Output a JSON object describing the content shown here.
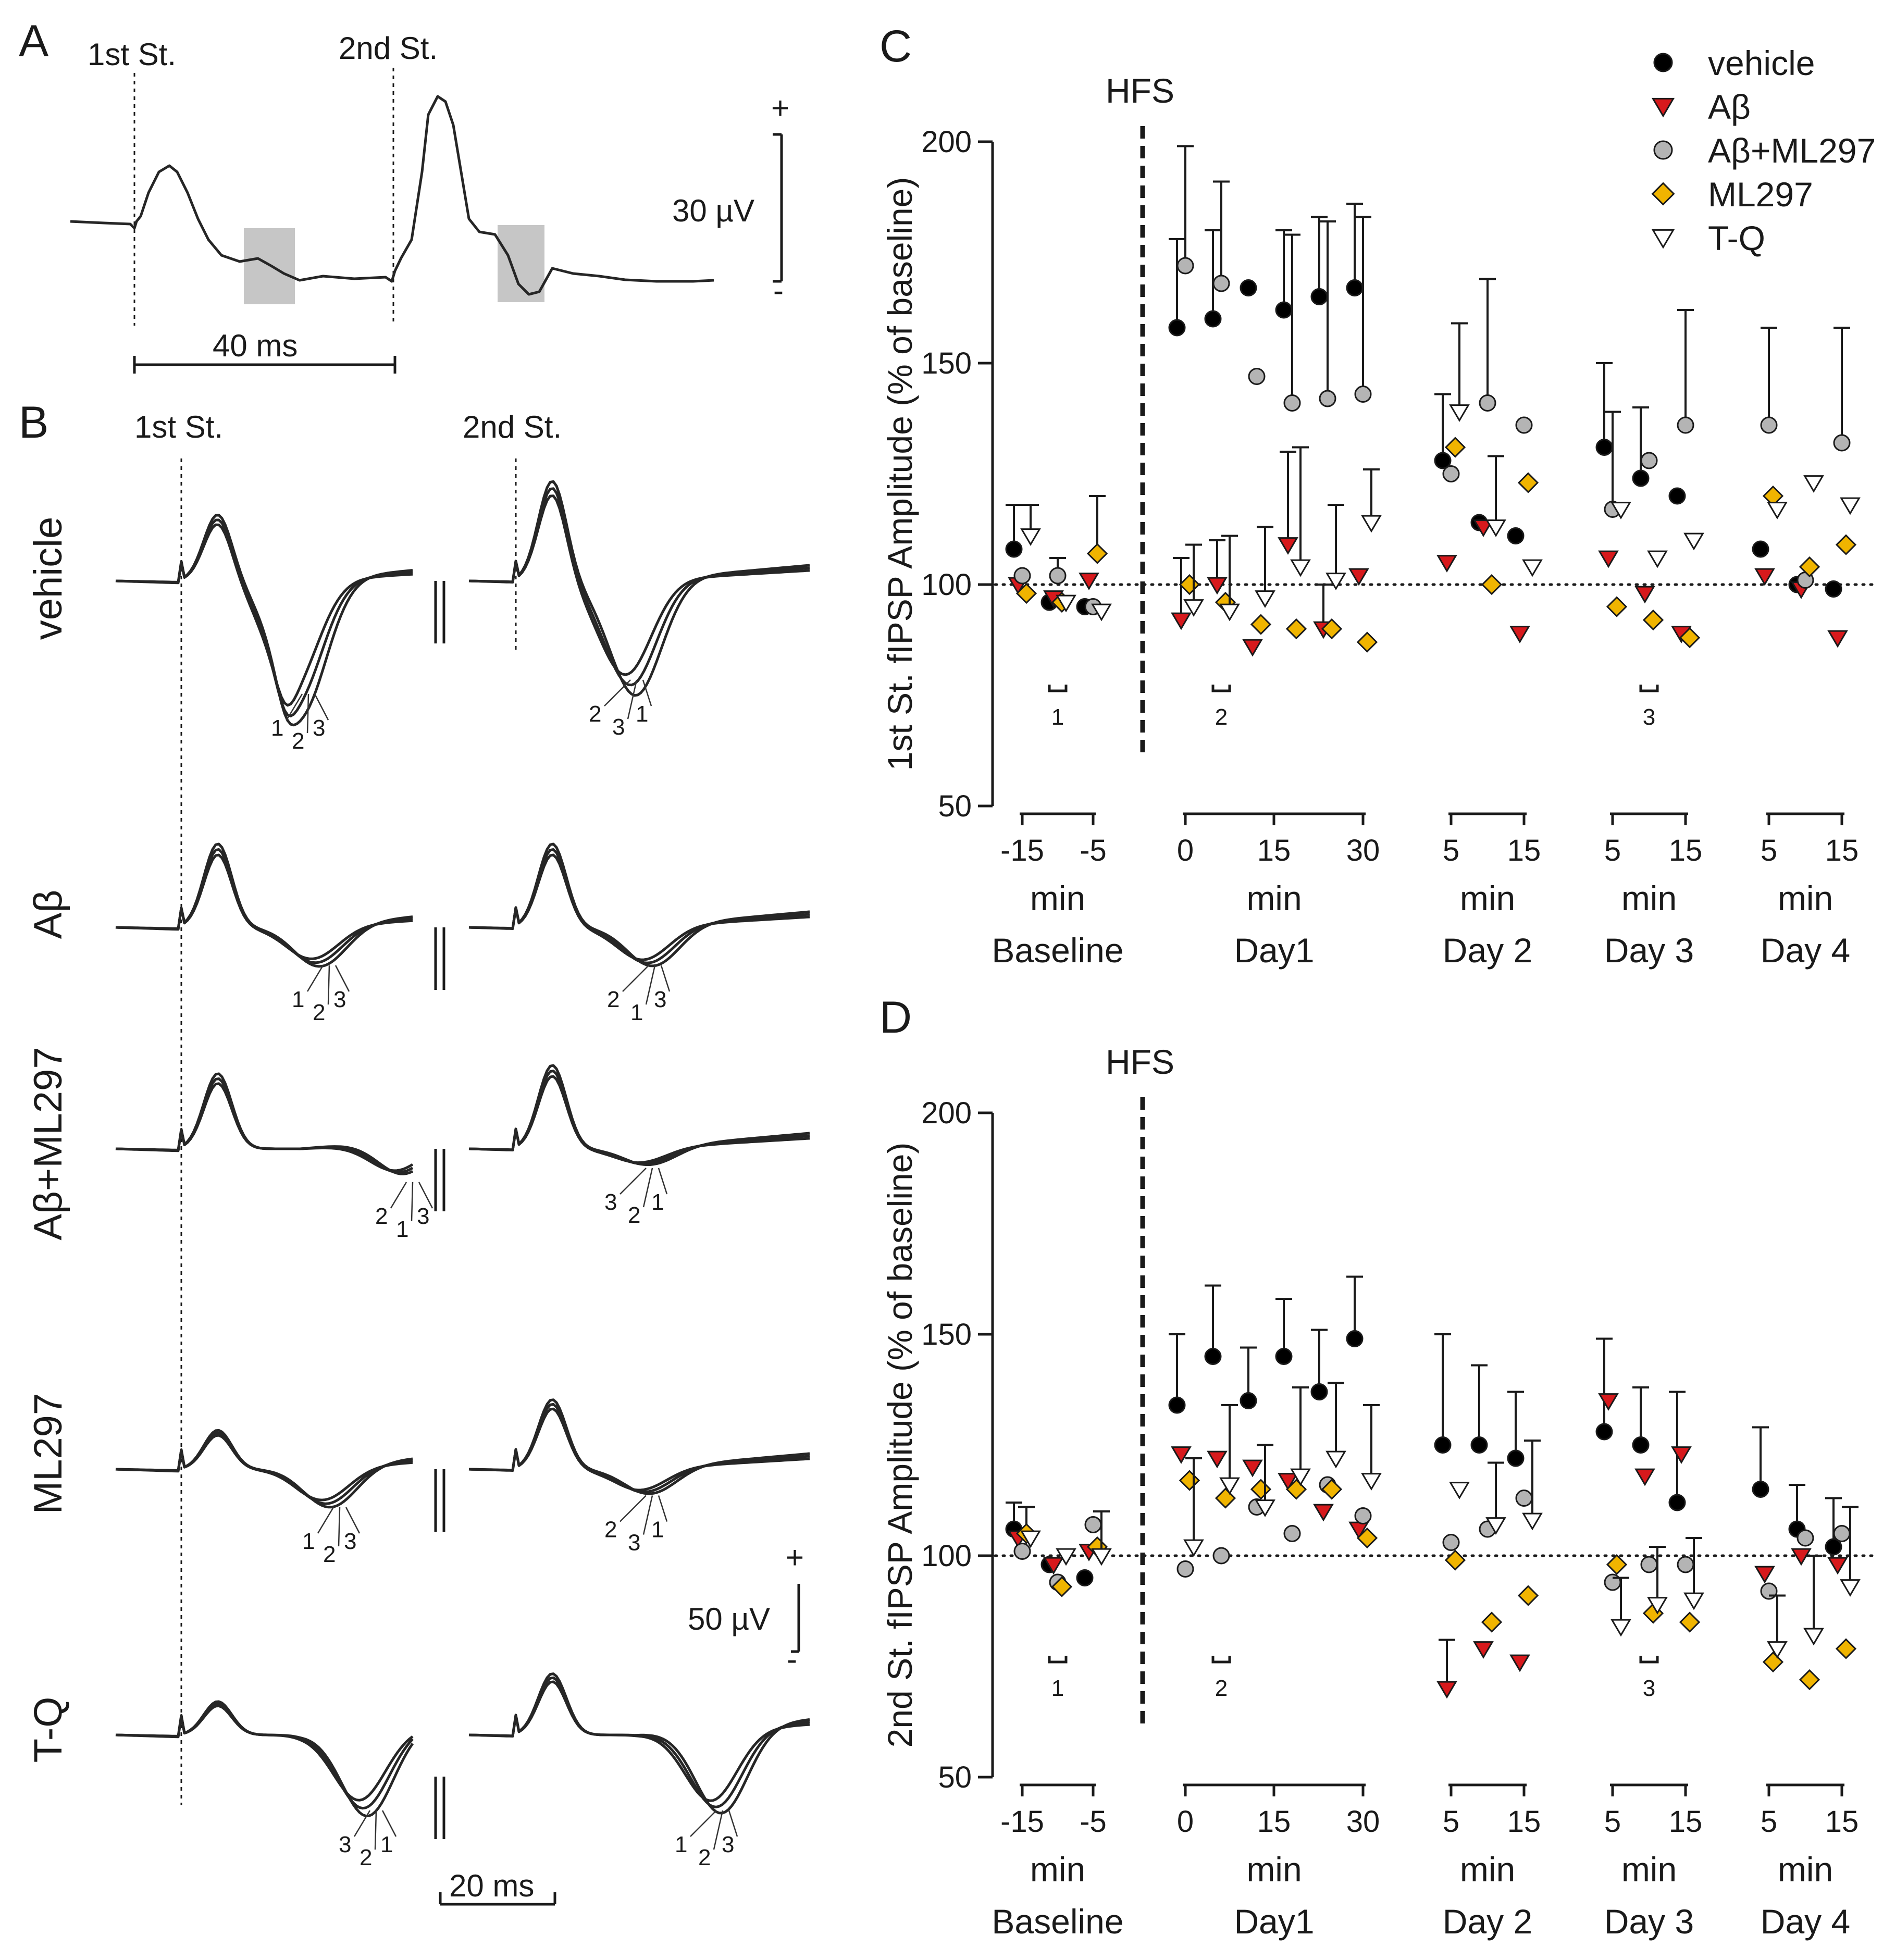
{
  "panels": {
    "A": "A",
    "B": "B",
    "C": "C",
    "D": "D"
  },
  "panel_a": {
    "stim1_label": "1st St.",
    "stim2_label": "2nd St.",
    "time_scale_label": "40 ms",
    "amp_scale_label": "30 µV",
    "plus": "+",
    "minus": "-"
  },
  "panel_b": {
    "stim1_label": "1st St.",
    "stim2_label": "2nd St.",
    "rows": [
      {
        "label": "vehicle",
        "left_idx": [
          "1",
          "2",
          "3"
        ],
        "right_idx": [
          "2",
          "3",
          "1"
        ]
      },
      {
        "label": "Aβ",
        "left_idx": [
          "1",
          "2",
          "3"
        ],
        "right_idx": [
          "2",
          "1",
          "3"
        ]
      },
      {
        "label": "Aβ+ML297",
        "left_idx": [
          "2",
          "1",
          "3"
        ],
        "right_idx": [
          "3",
          "2",
          "1"
        ]
      },
      {
        "label": "ML297",
        "left_idx": [
          "1",
          "2",
          "3"
        ],
        "right_idx": [
          "2",
          "3",
          "1"
        ]
      },
      {
        "label": "T-Q",
        "left_idx": [
          "3",
          "2",
          "1"
        ],
        "right_idx": [
          "1",
          "2",
          "3"
        ]
      }
    ],
    "amp_scale_label": "50 µV",
    "time_scale_label": "20 ms",
    "plus": "+",
    "minus": "-"
  },
  "legend": {
    "items": [
      {
        "label": "vehicle",
        "color": "#000000",
        "marker": "circle"
      },
      {
        "label": "Aβ",
        "color": "#d7191c",
        "marker": "triangle-down"
      },
      {
        "label": "Aβ+ML297",
        "color": "#b4b4b4",
        "marker": "circle"
      },
      {
        "label": "ML297",
        "color": "#f0b400",
        "marker": "diamond"
      },
      {
        "label": "T-Q",
        "color": "#ffffff",
        "marker": "triangle-down-open"
      }
    ]
  },
  "groups": [
    {
      "name": "Baseline",
      "unit": "min",
      "ticks": [
        "-15",
        "-5"
      ],
      "idx": "1"
    },
    {
      "name": "Day1",
      "unit": "min",
      "ticks": [
        "0",
        "15",
        "30"
      ],
      "idx": "2"
    },
    {
      "name": "Day 2",
      "unit": "min",
      "ticks": [
        "5",
        "15"
      ],
      "idx": ""
    },
    {
      "name": "Day 3",
      "unit": "min",
      "ticks": [
        "5",
        "15"
      ],
      "idx": "3"
    },
    {
      "name": "Day 4",
      "unit": "min",
      "ticks": [
        "5",
        "15"
      ],
      "idx": ""
    }
  ],
  "chart_data": [
    {
      "type": "scatter",
      "panel": "C",
      "title": "",
      "ylabel": "1st St. fIPSP Amplitude (% of baseline)",
      "ylim": [
        50,
        200
      ],
      "yticks": [
        "50",
        "100",
        "150",
        "200"
      ],
      "reference_line": 100,
      "annotation": "HFS",
      "series": [
        {
          "name": "vehicle",
          "values": [
            108,
            96,
            95,
            158,
            160,
            167,
            162,
            165,
            167,
            128,
            114,
            111,
            131,
            124,
            120,
            108,
            100,
            99
          ],
          "errors": [
            10,
            0,
            0,
            20,
            20,
            0,
            18,
            18,
            19,
            15,
            0,
            0,
            19,
            16,
            0,
            0,
            0,
            0
          ]
        },
        {
          "name": "Aβ",
          "values": [
            100,
            97,
            101,
            92,
            100,
            86,
            109,
            90,
            102,
            105,
            113,
            89,
            106,
            98,
            89,
            102,
            99,
            88
          ],
          "errors": [
            0,
            0,
            0,
            14,
            10,
            0,
            21,
            10,
            0,
            0,
            0,
            0,
            0,
            0,
            0,
            0,
            0,
            0
          ]
        },
        {
          "name": "Aβ+ML297",
          "values": [
            102,
            102,
            95,
            172,
            168,
            147,
            141,
            142,
            143,
            125,
            141,
            136,
            117,
            128,
            136,
            136,
            101,
            132
          ],
          "errors": [
            0,
            4,
            0,
            27,
            23,
            0,
            38,
            40,
            40,
            0,
            28,
            0,
            22,
            0,
            26,
            22,
            0,
            26
          ]
        },
        {
          "name": "ML297",
          "values": [
            98,
            96,
            107,
            100,
            96,
            91,
            90,
            90,
            87,
            131,
            100,
            123,
            95,
            92,
            88,
            120,
            104,
            109
          ],
          "errors": [
            0,
            0,
            13,
            0,
            0,
            0,
            0,
            0,
            0,
            0,
            0,
            0,
            0,
            0,
            0,
            0,
            0,
            0
          ]
        },
        {
          "name": "T-Q",
          "values": [
            111,
            96,
            94,
            95,
            94,
            97,
            104,
            101,
            114,
            139,
            113,
            104,
            117,
            106,
            110,
            117,
            123,
            118
          ],
          "errors": [
            7,
            0,
            0,
            14,
            17,
            16,
            27,
            17,
            12,
            20,
            16,
            0,
            0,
            0,
            0,
            0,
            0,
            0
          ]
        }
      ]
    },
    {
      "type": "scatter",
      "panel": "D",
      "title": "",
      "ylabel": "2nd St. fIPSP Amplitude (% of baseline)",
      "ylim": [
        50,
        200
      ],
      "yticks": [
        "50",
        "100",
        "150",
        "200"
      ],
      "reference_line": 100,
      "annotation": "HFS",
      "series": [
        {
          "name": "vehicle",
          "values": [
            106,
            98,
            95,
            134,
            145,
            135,
            145,
            137,
            149,
            125,
            125,
            122,
            128,
            125,
            112,
            115,
            106,
            102
          ],
          "errors": [
            6,
            0,
            0,
            16,
            16,
            12,
            13,
            14,
            14,
            25,
            18,
            15,
            21,
            13,
            25,
            14,
            10,
            11
          ]
        },
        {
          "name": "Aβ",
          "values": [
            104,
            98,
            101,
            123,
            122,
            120,
            117,
            110,
            106,
            70,
            79,
            76,
            135,
            118,
            123,
            96,
            100,
            98
          ],
          "errors": [
            0,
            0,
            0,
            0,
            0,
            0,
            0,
            0,
            0,
            11,
            0,
            0,
            0,
            0,
            0,
            0,
            0,
            0
          ]
        },
        {
          "name": "Aβ+ML297",
          "values": [
            101,
            94,
            107,
            97,
            100,
            111,
            105,
            116,
            109,
            103,
            106,
            113,
            94,
            98,
            98,
            92,
            104,
            105
          ],
          "errors": [
            0,
            0,
            0,
            0,
            0,
            0,
            0,
            0,
            0,
            0,
            0,
            0,
            0,
            0,
            0,
            0,
            0,
            0
          ]
        },
        {
          "name": "ML297",
          "values": [
            105,
            93,
            102,
            117,
            113,
            115,
            115,
            115,
            104,
            99,
            85,
            91,
            98,
            87,
            85,
            76,
            72,
            79
          ],
          "errors": [
            6,
            0,
            0,
            0,
            0,
            0,
            0,
            0,
            0,
            0,
            0,
            0,
            0,
            0,
            0,
            0,
            0,
            0
          ]
        },
        {
          "name": "T-Q",
          "values": [
            104,
            100,
            100,
            102,
            116,
            111,
            118,
            122,
            117,
            115,
            107,
            108,
            84,
            89,
            90,
            79,
            82,
            93
          ],
          "errors": [
            0,
            0,
            10,
            20,
            18,
            14,
            20,
            17,
            17,
            0,
            14,
            18,
            11,
            13,
            14,
            12,
            18,
            18
          ]
        }
      ]
    }
  ]
}
